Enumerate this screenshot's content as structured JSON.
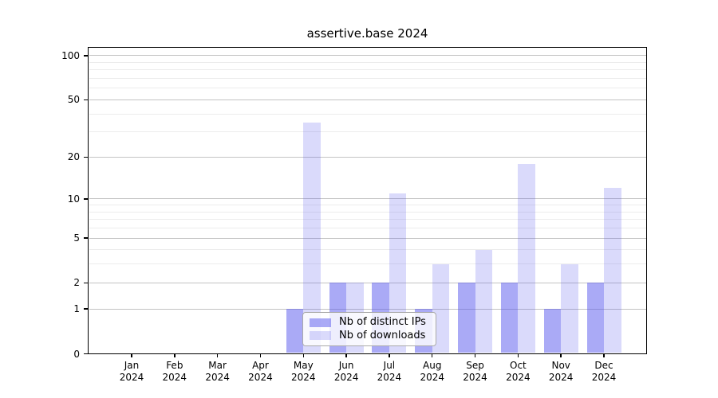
{
  "window": {
    "title": "assertive.base 2024"
  },
  "colors": {
    "bar_base": "#5555ee",
    "series_distinct_ips": "rgba(85,85,238,0.5)",
    "series_downloads": "rgba(85,85,238,0.22)",
    "major_grid": "#c3c3c3",
    "minor_grid": "#ececec",
    "axis": "#000000",
    "legend_bg": "rgba(255,255,255,0.8)",
    "legend_border": "#aaaaaa"
  },
  "chart_data": {
    "type": "bar",
    "title": "assertive.base 2024",
    "categories": [
      "Jan 2024",
      "Feb 2024",
      "Mar 2024",
      "Apr 2024",
      "May 2024",
      "Jun 2024",
      "Jul 2024",
      "Aug 2024",
      "Sep 2024",
      "Oct 2024",
      "Nov 2024",
      "Dec 2024"
    ],
    "series": [
      {
        "name": "Nb of distinct IPs",
        "color": "rgba(85,85,238,0.5)",
        "values": [
          0,
          0,
          0,
          0,
          1,
          2,
          2,
          1,
          2,
          2,
          1,
          2
        ]
      },
      {
        "name": "Nb of downloads",
        "color": "rgba(85,85,238,0.22)",
        "values": [
          0,
          0,
          0,
          0,
          35,
          2,
          11,
          3,
          4,
          18,
          3,
          12
        ]
      }
    ],
    "xlabel": "",
    "ylabel": "",
    "y_scale": "log1p",
    "ylim": [
      0,
      112
    ],
    "y_ticks": [
      0,
      1,
      2,
      5,
      10,
      20,
      50,
      100
    ],
    "y_minor_gridlines": [
      3,
      4,
      6,
      7,
      8,
      9,
      30,
      40,
      60,
      70,
      80,
      90
    ],
    "grid": "on",
    "legend_position": "inside lower-center"
  }
}
